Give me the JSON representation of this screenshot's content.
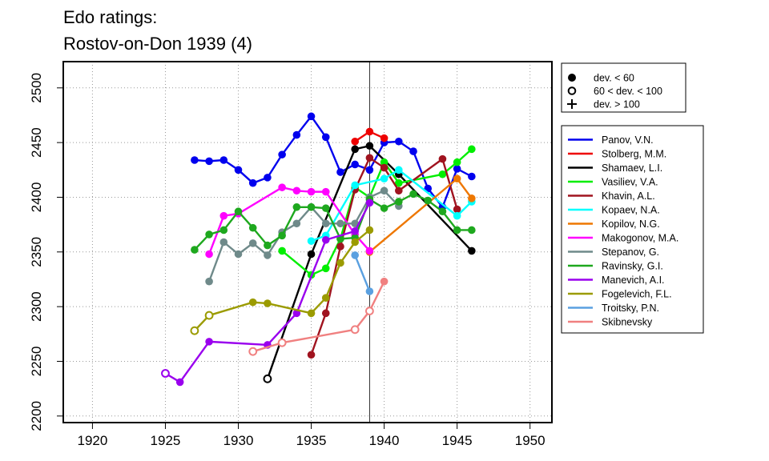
{
  "chart_data": {
    "type": "line",
    "title_lines": [
      "Edo ratings:",
      "Rostov-on-Don 1939 (4)"
    ],
    "xlabel": "",
    "ylabel": "",
    "xlim": [
      1918,
      1951.5
    ],
    "ylim": [
      2194,
      2524
    ],
    "x_ticks": [
      1920,
      1925,
      1930,
      1935,
      1940,
      1945,
      1950
    ],
    "y_ticks": [
      2200,
      2250,
      2300,
      2350,
      2400,
      2450,
      2500
    ],
    "grid": "dotted",
    "reference_line_x": 1939,
    "marker_legend": [
      {
        "label": "dev. < 60",
        "marker": "filled-circle"
      },
      {
        "label": "60 < dev. < 100",
        "marker": "open-circle"
      },
      {
        "label": "dev. > 100",
        "marker": "plus"
      }
    ],
    "series": [
      {
        "name": "Panov, V.N.",
        "color": "#0000ee",
        "points": [
          [
            1927,
            2434,
            "f"
          ],
          [
            1928,
            2433,
            "f"
          ],
          [
            1929,
            2434,
            "f"
          ],
          [
            1930,
            2425,
            "f"
          ],
          [
            1931,
            2413,
            "f"
          ],
          [
            1932,
            2418,
            "f"
          ],
          [
            1933,
            2439,
            "f"
          ],
          [
            1934,
            2457,
            "f"
          ],
          [
            1935,
            2474,
            "f"
          ],
          [
            1936,
            2455,
            "f"
          ],
          [
            1937,
            2423,
            "f"
          ],
          [
            1938,
            2430,
            "f"
          ],
          [
            1939,
            2425,
            "f"
          ],
          [
            1940,
            2450,
            "f"
          ],
          [
            1941,
            2451,
            "f"
          ],
          [
            1942,
            2442,
            "f"
          ],
          [
            1943,
            2408,
            "f"
          ],
          [
            1944,
            2391,
            "f"
          ],
          [
            1945,
            2426,
            "f"
          ],
          [
            1946,
            2419,
            "f"
          ]
        ]
      },
      {
        "name": "Stolberg, M.M.",
        "color": "#ee0000",
        "points": [
          [
            1938,
            2451,
            "f"
          ],
          [
            1939,
            2460,
            "f"
          ],
          [
            1940,
            2454,
            "f"
          ]
        ]
      },
      {
        "name": "Shamaev, L.I.",
        "color": "#000000",
        "points": [
          [
            1932,
            2234,
            "o"
          ],
          [
            1935,
            2348,
            "f"
          ],
          [
            1938,
            2444,
            "f"
          ],
          [
            1939,
            2447,
            "f"
          ],
          [
            1941,
            2421,
            "f"
          ],
          [
            1946,
            2351,
            "f"
          ]
        ]
      },
      {
        "name": "Vasiliev, V.A.",
        "color": "#00ee00",
        "points": [
          [
            1933,
            2351,
            "f"
          ],
          [
            1935,
            2329,
            "f"
          ],
          [
            1936,
            2335,
            "f"
          ],
          [
            1937,
            2362,
            "f"
          ],
          [
            1938,
            2409,
            "f"
          ],
          [
            1939,
            2400,
            "f"
          ],
          [
            1940,
            2432,
            "f"
          ],
          [
            1941,
            2413,
            "f"
          ],
          [
            1944,
            2421,
            "f"
          ],
          [
            1945,
            2432,
            "f"
          ],
          [
            1946,
            2444,
            "f"
          ]
        ]
      },
      {
        "name": "Khavin, A.L.",
        "color": "#a0131f",
        "points": [
          [
            1935,
            2256,
            "f"
          ],
          [
            1936,
            2294,
            "f"
          ],
          [
            1937,
            2355,
            "f"
          ],
          [
            1938,
            2407,
            "f"
          ],
          [
            1939,
            2436,
            "f"
          ],
          [
            1940,
            2427,
            "f"
          ],
          [
            1941,
            2406,
            "f"
          ],
          [
            1944,
            2435,
            "f"
          ],
          [
            1945,
            2389,
            "f"
          ]
        ]
      },
      {
        "name": "Kopaev, N.A.",
        "color": "#00ffff",
        "points": [
          [
            1935,
            2360,
            "f"
          ],
          [
            1936,
            2365,
            "f"
          ],
          [
            1938,
            2411,
            "f"
          ],
          [
            1940,
            2417,
            "f"
          ],
          [
            1941,
            2425,
            "f"
          ],
          [
            1945,
            2383,
            "f"
          ],
          [
            1946,
            2396,
            "f"
          ]
        ]
      },
      {
        "name": "Kopilov, N.G.",
        "color": "#ee7700",
        "points": [
          [
            1939,
            2350,
            "f"
          ],
          [
            1945,
            2417,
            "f"
          ],
          [
            1946,
            2399,
            "f"
          ]
        ]
      },
      {
        "name": "Makogonov, M.A.",
        "color": "#ff00ff",
        "points": [
          [
            1928,
            2348,
            "f"
          ],
          [
            1929,
            2383,
            "f"
          ],
          [
            1930,
            2385,
            "f"
          ],
          [
            1933,
            2409,
            "f"
          ],
          [
            1934,
            2406,
            "f"
          ],
          [
            1935,
            2405,
            "f"
          ],
          [
            1936,
            2405,
            "f"
          ],
          [
            1938,
            2366,
            "f"
          ],
          [
            1939,
            2351,
            "f"
          ]
        ]
      },
      {
        "name": "Stepanov, G.",
        "color": "#6f8a8a",
        "points": [
          [
            1928,
            2323,
            "f"
          ],
          [
            1929,
            2359,
            "f"
          ],
          [
            1930,
            2348,
            "f"
          ],
          [
            1931,
            2358,
            "f"
          ],
          [
            1932,
            2347,
            "f"
          ],
          [
            1933,
            2368,
            "f"
          ],
          [
            1934,
            2376,
            "f"
          ],
          [
            1935,
            2391,
            "f"
          ],
          [
            1936,
            2376,
            "f"
          ],
          [
            1937,
            2376,
            "f"
          ],
          [
            1938,
            2376,
            "f"
          ],
          [
            1939,
            2400,
            "f"
          ],
          [
            1940,
            2406,
            "f"
          ],
          [
            1941,
            2392,
            "f"
          ]
        ]
      },
      {
        "name": "Ravinsky, G.I.",
        "color": "#1ea81e",
        "points": [
          [
            1927,
            2352,
            "f"
          ],
          [
            1928,
            2366,
            "f"
          ],
          [
            1929,
            2370,
            "f"
          ],
          [
            1930,
            2387,
            "f"
          ],
          [
            1931,
            2372,
            "f"
          ],
          [
            1932,
            2356,
            "f"
          ],
          [
            1933,
            2365,
            "f"
          ],
          [
            1934,
            2391,
            "f"
          ],
          [
            1935,
            2391,
            "f"
          ],
          [
            1936,
            2390,
            "f"
          ],
          [
            1937,
            2362,
            "f"
          ],
          [
            1938,
            2363,
            "f"
          ],
          [
            1939,
            2398,
            "f"
          ],
          [
            1940,
            2390,
            "f"
          ],
          [
            1941,
            2396,
            "f"
          ],
          [
            1942,
            2403,
            "f"
          ],
          [
            1943,
            2397,
            "f"
          ],
          [
            1944,
            2387,
            "f"
          ],
          [
            1945,
            2370,
            "f"
          ],
          [
            1946,
            2370,
            "f"
          ]
        ]
      },
      {
        "name": "Manevich, A.I.",
        "color": "#9a00ee",
        "points": [
          [
            1925,
            2239,
            "o"
          ],
          [
            1926,
            2231,
            "f"
          ],
          [
            1928,
            2268,
            "f"
          ],
          [
            1932,
            2265,
            "f"
          ],
          [
            1934,
            2294,
            "f"
          ],
          [
            1936,
            2361,
            "f"
          ],
          [
            1938,
            2369,
            "f"
          ],
          [
            1939,
            2395,
            "f"
          ]
        ]
      },
      {
        "name": "Fogelevich, F.L.",
        "color": "#9b9b00",
        "points": [
          [
            1927,
            2278,
            "o"
          ],
          [
            1928,
            2292,
            "o"
          ],
          [
            1931,
            2304,
            "f"
          ],
          [
            1932,
            2303,
            "f"
          ],
          [
            1935,
            2294,
            "f"
          ],
          [
            1936,
            2308,
            "f"
          ],
          [
            1937,
            2340,
            "f"
          ],
          [
            1938,
            2359,
            "f"
          ],
          [
            1939,
            2370,
            "f"
          ]
        ]
      },
      {
        "name": "Troitsky, P.N.",
        "color": "#5aa0e0",
        "points": [
          [
            1938,
            2347,
            "f"
          ],
          [
            1939,
            2314,
            "f"
          ]
        ]
      },
      {
        "name": "Skibnevsky",
        "color": "#f08080",
        "points": [
          [
            1931,
            2259,
            "o"
          ],
          [
            1933,
            2267,
            "o"
          ],
          [
            1938,
            2279,
            "o"
          ],
          [
            1939,
            2296,
            "o"
          ],
          [
            1940,
            2323,
            "f"
          ]
        ]
      }
    ]
  }
}
